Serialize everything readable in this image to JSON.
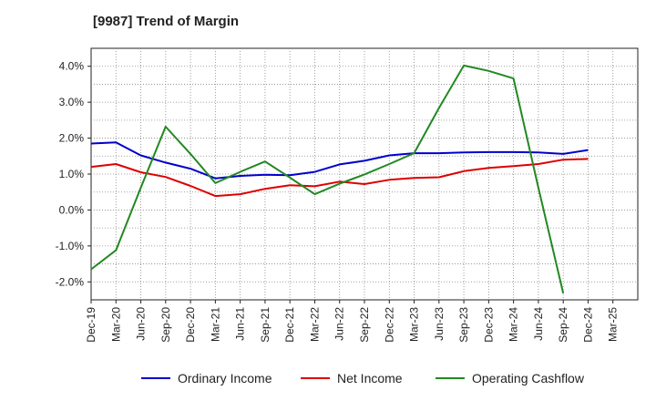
{
  "title": "[9987]  Trend of Margin",
  "chart_data": {
    "type": "line",
    "title": "[9987]  Trend of Margin",
    "xlabel": "",
    "ylabel": "",
    "categories": [
      "Dec-19",
      "Mar-20",
      "Jun-20",
      "Sep-20",
      "Dec-20",
      "Mar-21",
      "Jun-21",
      "Sep-21",
      "Dec-21",
      "Mar-22",
      "Jun-22",
      "Sep-22",
      "Dec-22",
      "Mar-23",
      "Jun-23",
      "Sep-23",
      "Dec-23",
      "Mar-24",
      "Jun-24",
      "Sep-24",
      "Dec-24",
      "Mar-25"
    ],
    "y_ticks": [
      "4.0%",
      "3.0%",
      "2.0%",
      "1.0%",
      "0.0%",
      "-1.0%",
      "-2.0%"
    ],
    "ylim": [
      -2.5,
      4.5
    ],
    "grid": true,
    "legend_position": "bottom",
    "series": [
      {
        "name": "Ordinary Income",
        "color": "#0000cc",
        "values": [
          1.85,
          1.88,
          1.52,
          1.32,
          1.15,
          0.88,
          0.95,
          0.98,
          0.97,
          1.06,
          1.27,
          1.37,
          1.52,
          1.58,
          1.58,
          1.6,
          1.61,
          1.61,
          1.6,
          1.56,
          1.67,
          null
        ]
      },
      {
        "name": "Net Income",
        "color": "#dd0000",
        "values": [
          1.2,
          1.28,
          1.05,
          0.92,
          0.67,
          0.39,
          0.44,
          0.59,
          0.69,
          0.66,
          0.79,
          0.72,
          0.84,
          0.89,
          0.91,
          1.08,
          1.17,
          1.22,
          1.28,
          1.4,
          1.42,
          null
        ]
      },
      {
        "name": "Operating Cashflow",
        "color": "#228822",
        "values": [
          -1.65,
          -1.12,
          0.62,
          2.32,
          1.56,
          0.75,
          1.06,
          1.35,
          0.9,
          0.44,
          0.73,
          0.99,
          1.28,
          1.58,
          2.84,
          4.02,
          3.87,
          3.66,
          0.62,
          -2.32,
          null,
          null
        ]
      }
    ]
  }
}
